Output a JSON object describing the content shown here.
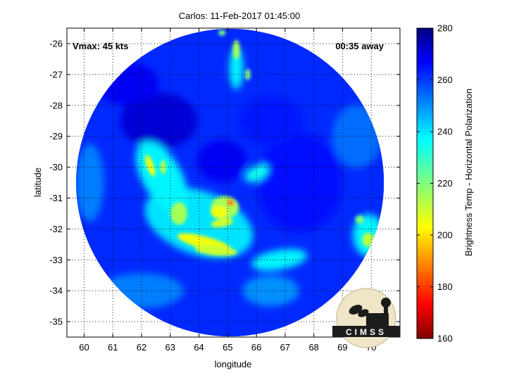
{
  "chart_data": {
    "type": "heatmap",
    "title": "Carlos: 11-Feb-2017 01:45:00",
    "xlabel": "longitude",
    "ylabel": "latitude",
    "xlim": [
      59.4,
      71.0
    ],
    "ylim": [
      -35.5,
      -25.5
    ],
    "xticks": [
      "60",
      "61",
      "62",
      "63",
      "64",
      "65",
      "66",
      "67",
      "68",
      "69",
      "70"
    ],
    "yticks": [
      "-26",
      "-27",
      "-28",
      "-29",
      "-30",
      "-31",
      "-32",
      "-33",
      "-34",
      "-35"
    ],
    "grid": true,
    "annotations": {
      "left": "Vmax: 45 kts",
      "right": "00:35 away"
    },
    "colorbar": {
      "label": "Brightness Temp - Horizontal Polarization",
      "range": [
        160,
        280
      ],
      "ticks": [
        "160",
        "180",
        "200",
        "220",
        "240",
        "260",
        "280"
      ],
      "colormap": "jet"
    },
    "swath": {
      "center_lon": 65.08,
      "center_lat": -30.5,
      "radius_deg_lat": 4.98
    },
    "background_temp": 262,
    "features": [
      {
        "name": "eye-wall-core",
        "lon": 65.1,
        "lat": -31.15,
        "temp": 180
      },
      {
        "name": "inner-ring",
        "lon": 64.9,
        "lat": -31.3,
        "temp": 205
      },
      {
        "name": "southern-band",
        "lon": 64.0,
        "lat": -32.5,
        "temp": 205
      },
      {
        "name": "western-band",
        "lon": 62.3,
        "lat": -30.0,
        "temp": 210
      },
      {
        "name": "eastern-cells",
        "lon": 69.9,
        "lat": -32.3,
        "temp": 212
      },
      {
        "name": "northern-streak",
        "lon": 65.3,
        "lat": -26.2,
        "temp": 220
      },
      {
        "name": "cold-cloud-north",
        "lon": 62.6,
        "lat": -28.5,
        "temp": 270
      }
    ]
  },
  "logo": {
    "text": "CIMSS"
  }
}
